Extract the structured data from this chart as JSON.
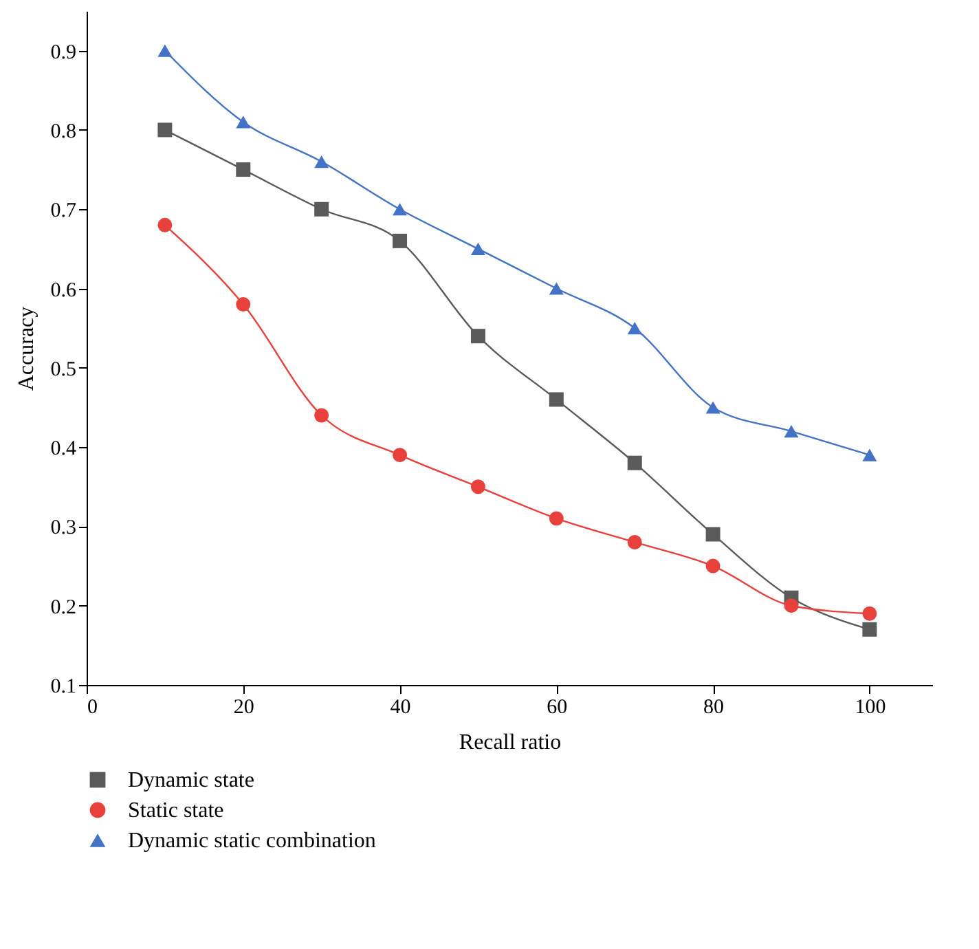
{
  "chart_data": {
    "type": "line",
    "xlabel": "Recall ratio",
    "ylabel": "Accuracy",
    "x": [
      10,
      20,
      30,
      40,
      50,
      60,
      70,
      80,
      90,
      100
    ],
    "series": [
      {
        "name": "Dynamic state",
        "color": "#5a5a5a",
        "marker": "square",
        "values": [
          0.8,
          0.75,
          0.7,
          0.66,
          0.54,
          0.46,
          0.38,
          0.29,
          0.21,
          0.17
        ]
      },
      {
        "name": "Static state",
        "color": "#e8413c",
        "marker": "circle",
        "values": [
          0.68,
          0.58,
          0.44,
          0.39,
          0.35,
          0.31,
          0.28,
          0.25,
          0.2,
          0.19
        ]
      },
      {
        "name": "Dynamic static combination",
        "color": "#4472c4",
        "marker": "triangle",
        "values": [
          0.9,
          0.81,
          0.76,
          0.7,
          0.65,
          0.6,
          0.55,
          0.45,
          0.42,
          0.39
        ]
      }
    ],
    "xlim": [
      0,
      108
    ],
    "xticks": [
      0,
      20,
      40,
      60,
      80,
      100
    ],
    "ylim": [
      0.1,
      0.95
    ],
    "yticks": [
      0.1,
      0.2,
      0.3,
      0.4,
      0.5,
      0.6,
      0.7,
      0.8,
      0.9
    ],
    "grid": false,
    "legend": "bottom left",
    "line_style": "solid"
  }
}
